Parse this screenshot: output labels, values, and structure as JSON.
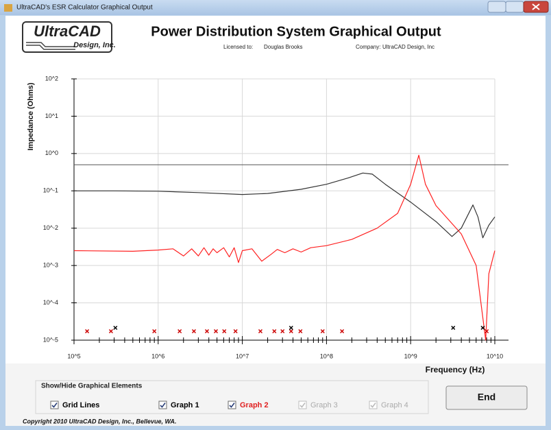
{
  "window": {
    "title": "UltraCAD's ESR Calculator Graphical Output"
  },
  "logo": {
    "name": "UltraCAD",
    "subtitle": "Design, Inc."
  },
  "header": {
    "title": "Power Distribution System Graphical Output",
    "licensed_label": "Licensed to:",
    "licensed_to": "Douglas Brooks",
    "company_label": "Company:",
    "company": "UltraCAD Design, Inc"
  },
  "chart_data": {
    "type": "line",
    "xlabel": "Frequency (Hz)",
    "ylabel": "Impedance (Ohms)",
    "log_x": true,
    "log_y": true,
    "grid": true,
    "xlim": [
      100000,
      10000000000
    ],
    "xticks": [
      {
        "value": 100000,
        "label": "10^5"
      },
      {
        "value": 1000000,
        "label": "10^6"
      },
      {
        "value": 10000000,
        "label": "10^7"
      },
      {
        "value": 100000000,
        "label": "10^8"
      },
      {
        "value": 1000000000,
        "label": "10^9"
      },
      {
        "value": 10000000000,
        "label": "10^10"
      }
    ],
    "ylim": [
      1e-05,
      100
    ],
    "yticks": [
      {
        "value": 1e-05,
        "label": "10^-5"
      },
      {
        "value": 0.0001,
        "label": "10^-4"
      },
      {
        "value": 0.001,
        "label": "10^-3"
      },
      {
        "value": 0.01,
        "label": "10^-2"
      },
      {
        "value": 0.1,
        "label": "10^-1"
      },
      {
        "value": 1,
        "label": "10^0"
      },
      {
        "value": 10,
        "label": "10^1"
      },
      {
        "value": 100,
        "label": "10^2"
      }
    ],
    "reference_line": {
      "value": 0.5,
      "color": "#555555"
    },
    "series": [
      {
        "color": "#333333",
        "x": [
          100000,
          300000,
          1000000,
          3000000,
          10000000,
          20000000,
          50000000,
          100000000,
          180000000,
          270000000,
          350000000,
          500000000,
          1000000000,
          2000000000,
          3100000000,
          4000000000,
          5500000000,
          6300000000,
          7200000000,
          8500000000,
          10000000000
        ],
        "values": [
          0.1,
          0.1,
          0.098,
          0.09,
          0.08,
          0.085,
          0.11,
          0.15,
          0.22,
          0.3,
          0.28,
          0.15,
          0.05,
          0.015,
          0.006,
          0.01,
          0.042,
          0.02,
          0.0055,
          0.012,
          0.02
        ]
      },
      {
        "color": "#ff2020",
        "x": [
          100000,
          500000,
          1000000,
          1500000,
          2000000,
          2500000,
          3000000,
          3500000,
          4000000,
          4500000,
          5000000,
          6000000,
          7000000,
          8000000,
          9000000,
          10000000,
          13000000,
          17000000,
          22000000,
          26000000,
          32000000,
          40000000,
          50000000,
          65000000,
          100000000,
          200000000,
          400000000,
          700000000,
          1000000000,
          1250000000,
          1500000000,
          2000000000,
          4000000000,
          6000000000,
          7800000000,
          8500000000,
          10000000000
        ],
        "values": [
          0.0025,
          0.0024,
          0.0026,
          0.0028,
          0.0018,
          0.0028,
          0.0018,
          0.003,
          0.0019,
          0.0028,
          0.0022,
          0.003,
          0.0017,
          0.003,
          0.0012,
          0.0025,
          0.0028,
          0.0013,
          0.002,
          0.0027,
          0.0022,
          0.0028,
          0.0023,
          0.003,
          0.0034,
          0.005,
          0.01,
          0.025,
          0.15,
          0.9,
          0.15,
          0.04,
          0.007,
          0.001,
          1e-05,
          0.0006,
          0.0025
        ]
      }
    ],
    "markers": [
      {
        "color": "#cc0000",
        "x": [
          143000,
          275000,
          900000,
          1800000,
          2660000,
          3800000,
          4850000,
          6100000,
          8300000,
          16400000,
          24000000,
          30000000,
          38000000,
          49000000,
          90000000,
          153000000,
          8000000000
        ]
      },
      {
        "color": "#000000",
        "x": [
          310000,
          38000000,
          3200000000,
          7200000000
        ]
      }
    ]
  },
  "controls": {
    "group_label": "Show/Hide Graphical Elements",
    "checkboxes": [
      {
        "label": "Grid Lines",
        "checked": true,
        "enabled": true,
        "color": "#000000"
      },
      {
        "label": "Graph 1",
        "checked": true,
        "enabled": true,
        "color": "#000000"
      },
      {
        "label": "Graph 2",
        "checked": true,
        "enabled": true,
        "color": "#e02020"
      },
      {
        "label": "Graph 3",
        "checked": true,
        "enabled": false,
        "color": "#000000"
      },
      {
        "label": "Graph 4",
        "checked": true,
        "enabled": false,
        "color": "#000000"
      }
    ],
    "end_button": "End"
  },
  "footer": "Copyright 2010 UltraCAD Design, Inc., Bellevue, WA."
}
